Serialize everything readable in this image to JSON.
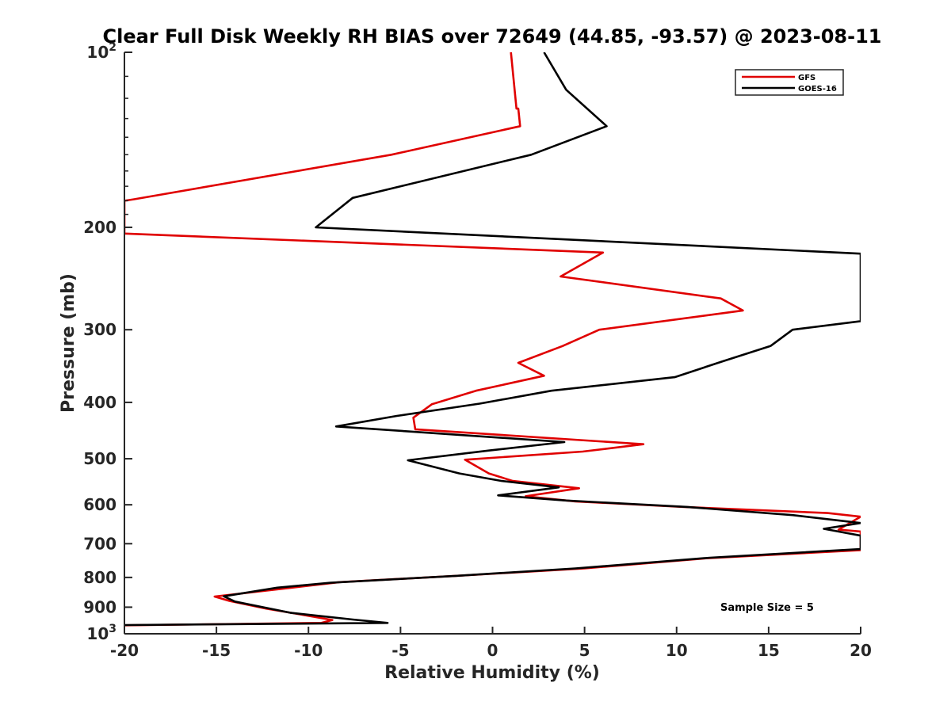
{
  "chart_data": {
    "type": "line",
    "title": "Clear Full Disk Weekly RH BIAS over 72649 (44.85, -93.57) @ 2023-08-11",
    "xlabel": "Relative Humidity (%)",
    "ylabel": "Pressure (mb)",
    "xlim": [
      -20,
      20
    ],
    "ylim": [
      100,
      1000
    ],
    "yscale": "log",
    "y_reversed": true,
    "grid": false,
    "legend_position": "top-right",
    "x_ticks": [
      "-20",
      "-15",
      "-10",
      "-5",
      "0",
      "5",
      "10",
      "15",
      "20"
    ],
    "y_ticks": [
      {
        "value": 100,
        "base": "10",
        "exp": "2"
      },
      {
        "value": 200,
        "label": "200"
      },
      {
        "value": 300,
        "label": "300"
      },
      {
        "value": 400,
        "label": "400"
      },
      {
        "value": 500,
        "label": "500"
      },
      {
        "value": 600,
        "label": "600"
      },
      {
        "value": 700,
        "label": "700"
      },
      {
        "value": 800,
        "label": "800"
      },
      {
        "value": 900,
        "label": "900"
      },
      {
        "value": 1000,
        "base": "10",
        "exp": "3"
      }
    ],
    "annotation": "Sample Size = 5",
    "series": [
      {
        "name": "GFS",
        "color": "#e00000",
        "points": [
          [
            1.0,
            100
          ],
          [
            1.3,
            125
          ],
          [
            1.4,
            125.0
          ],
          [
            1.5,
            134
          ],
          [
            -5.5,
            150
          ],
          [
            -19.5,
            179
          ],
          [
            -20,
            180
          ],
          [
            -20,
            205
          ],
          [
            6.0,
            221
          ],
          [
            3.7,
            243
          ],
          [
            12.4,
            265
          ],
          [
            13.6,
            278
          ],
          [
            5.8,
            300
          ],
          [
            3.8,
            320
          ],
          [
            1.4,
            342
          ],
          [
            2.8,
            360
          ],
          [
            -0.9,
            382
          ],
          [
            -3.3,
            403
          ],
          [
            -4.3,
            425
          ],
          [
            -4.2,
            445
          ],
          [
            8.2,
            472
          ],
          [
            4.9,
            486
          ],
          [
            -1.5,
            502
          ],
          [
            -0.2,
            530
          ],
          [
            1.1,
            546
          ],
          [
            4.7,
            562
          ],
          [
            1.8,
            580
          ],
          [
            4.5,
            592
          ],
          [
            10.3,
            605
          ],
          [
            18.2,
            620
          ],
          [
            20,
            629
          ],
          [
            18.8,
            662
          ],
          [
            20,
            667
          ],
          [
            20,
            718
          ],
          [
            11.5,
            742
          ],
          [
            5.0,
            772
          ],
          [
            -2.0,
            795
          ],
          [
            -8.3,
            815
          ],
          [
            -11.0,
            834
          ],
          [
            -15.1,
            863
          ],
          [
            -14.3,
            878
          ],
          [
            -12.3,
            905
          ],
          [
            -10.8,
            922
          ],
          [
            -8.7,
            947
          ],
          [
            -9.3,
            958
          ],
          [
            -20,
            967
          ]
        ]
      },
      {
        "name": "GOES-16",
        "color": "#000000",
        "points": [
          [
            2.8,
            100
          ],
          [
            4.0,
            116
          ],
          [
            6.2,
            134
          ],
          [
            2.1,
            150
          ],
          [
            -7.6,
            178
          ],
          [
            -9.6,
            200
          ],
          [
            20,
            222
          ],
          [
            20,
            290
          ],
          [
            16.3,
            300
          ],
          [
            15.1,
            320
          ],
          [
            12.5,
            340
          ],
          [
            9.9,
            362
          ],
          [
            3.2,
            382
          ],
          [
            -0.7,
            402
          ],
          [
            -5.2,
            422
          ],
          [
            -8.5,
            440
          ],
          [
            3.9,
            468
          ],
          [
            -0.2,
            484
          ],
          [
            -4.6,
            503
          ],
          [
            -1.8,
            530
          ],
          [
            0.5,
            546
          ],
          [
            3.6,
            560
          ],
          [
            0.3,
            578
          ],
          [
            4.0,
            590
          ],
          [
            10.5,
            605
          ],
          [
            16.3,
            625
          ],
          [
            20,
            645
          ],
          [
            18.0,
            660
          ],
          [
            20,
            678
          ],
          [
            20,
            715
          ],
          [
            11.8,
            740
          ],
          [
            4.5,
            772
          ],
          [
            -2.0,
            795
          ],
          [
            -8.8,
            817
          ],
          [
            -11.7,
            833
          ],
          [
            -14.6,
            862
          ],
          [
            -14.0,
            880
          ],
          [
            -11.0,
            920
          ],
          [
            -7.6,
            945
          ],
          [
            -5.7,
            958
          ],
          [
            -20,
            966
          ]
        ]
      }
    ]
  }
}
